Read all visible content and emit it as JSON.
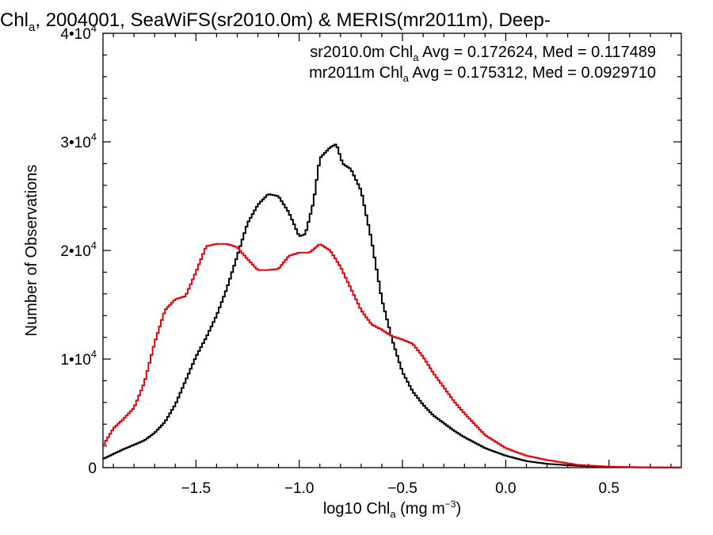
{
  "chart_data": {
    "type": "line",
    "title_parts": [
      "Chl",
      "a",
      ", 2004001, SeaWiFS(sr2010.0m) & MERIS(mr2011m), Deep-"
    ],
    "xlabel_parts": [
      "log10 Chl",
      "a",
      " (mg m",
      "−3",
      ")"
    ],
    "ylabel": "Number of Observations",
    "xlim": [
      -1.95,
      0.85
    ],
    "ylim": [
      0,
      40000
    ],
    "x_ticks": [
      -1.5,
      -1.0,
      -0.5,
      0.0,
      0.5
    ],
    "x_tick_labels": [
      "−1.5",
      "−1.0",
      "−0.5",
      "0.0",
      "0.5"
    ],
    "y_ticks": [
      0,
      10000,
      20000,
      30000,
      40000
    ],
    "y_tick_labels": [
      {
        "base": "0",
        "exp": ""
      },
      {
        "base": "1•10",
        "exp": "4"
      },
      {
        "base": "2•10",
        "exp": "4"
      },
      {
        "base": "3•10",
        "exp": "4"
      },
      {
        "base": "4•10",
        "exp": "4"
      }
    ],
    "legend_placement": "top-right",
    "series": [
      {
        "name_parts": [
          "sr2010.0m Chl",
          "a",
          " Avg = 0.172624, Med = 0.117489"
        ],
        "color": "#000000",
        "x": [
          -1.95,
          -1.85,
          -1.75,
          -1.7,
          -1.65,
          -1.6,
          -1.55,
          -1.5,
          -1.45,
          -1.4,
          -1.35,
          -1.3,
          -1.25,
          -1.2,
          -1.15,
          -1.1,
          -1.05,
          -1.0,
          -0.97,
          -0.93,
          -0.9,
          -0.85,
          -0.82,
          -0.79,
          -0.75,
          -0.7,
          -0.65,
          -0.6,
          -0.55,
          -0.5,
          -0.45,
          -0.4,
          -0.35,
          -0.3,
          -0.25,
          -0.2,
          -0.1,
          0.0,
          0.1,
          0.2,
          0.35,
          0.5,
          0.65,
          0.85
        ],
        "y": [
          800,
          1700,
          2500,
          3200,
          4200,
          5800,
          8000,
          10200,
          12000,
          14000,
          16500,
          19500,
          22500,
          24200,
          25200,
          25000,
          23500,
          21300,
          21500,
          24500,
          28500,
          29500,
          29800,
          28000,
          27500,
          25500,
          21000,
          15500,
          11800,
          8800,
          7000,
          5800,
          4800,
          4100,
          3400,
          2800,
          1800,
          1100,
          600,
          350,
          160,
          70,
          30,
          10
        ]
      },
      {
        "name_parts": [
          "mr2011m Chl",
          "a",
          " Avg = 0.175312, Med = 0.0929710"
        ],
        "color": "#e8000b",
        "x": [
          -1.95,
          -1.9,
          -1.85,
          -1.8,
          -1.75,
          -1.7,
          -1.65,
          -1.6,
          -1.55,
          -1.5,
          -1.45,
          -1.4,
          -1.35,
          -1.3,
          -1.25,
          -1.2,
          -1.15,
          -1.1,
          -1.05,
          -1.0,
          -0.95,
          -0.9,
          -0.85,
          -0.8,
          -0.75,
          -0.7,
          -0.65,
          -0.6,
          -0.55,
          -0.5,
          -0.45,
          -0.4,
          -0.35,
          -0.3,
          -0.25,
          -0.2,
          -0.1,
          0.0,
          0.1,
          0.2,
          0.35,
          0.5,
          0.65,
          0.85
        ],
        "y": [
          2000,
          3600,
          4500,
          5500,
          7800,
          11500,
          14500,
          15500,
          15800,
          18000,
          20400,
          20600,
          20600,
          20300,
          19200,
          18200,
          18200,
          18300,
          19500,
          19800,
          19800,
          20600,
          20000,
          18500,
          16500,
          14500,
          13200,
          12700,
          12100,
          11800,
          11400,
          10200,
          8700,
          7400,
          6100,
          5000,
          3000,
          1800,
          1100,
          700,
          250,
          90,
          40,
          10
        ]
      }
    ]
  }
}
